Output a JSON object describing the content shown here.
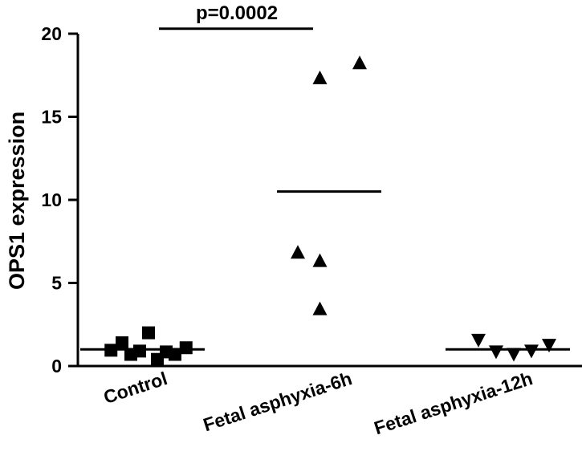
{
  "chart_data": {
    "type": "scatter",
    "title": "",
    "xlabel": "",
    "ylabel": "OPS1 expression",
    "ylim": [
      0,
      20
    ],
    "yticks": [
      0,
      5,
      10,
      15,
      20
    ],
    "grid": false,
    "legend": "none",
    "categories": [
      "Control",
      "Fetal asphyxia-6h",
      "Fetal asphyxia-12h"
    ],
    "series": [
      {
        "category": "Control",
        "marker": "square",
        "x_jitter": [
          -0.85,
          -0.6,
          -0.4,
          -0.2,
          0.0,
          0.2,
          0.4,
          0.6,
          0.85
        ],
        "values": [
          0.95,
          1.4,
          0.7,
          0.9,
          2.0,
          0.4,
          0.85,
          0.7,
          1.1
        ],
        "mean": 1.0
      },
      {
        "category": "Fetal asphyxia-6h",
        "marker": "triangle-up",
        "x_jitter": [
          -0.8,
          -0.3,
          -0.3,
          -0.3,
          0.6
        ],
        "values": [
          6.8,
          3.4,
          6.3,
          17.3,
          18.2
        ],
        "x_offsets_px": [],
        "mean": 10.5
      },
      {
        "category": "Fetal asphyxia-12h",
        "marker": "triangle-down",
        "x_jitter": [
          -0.8,
          -0.4,
          0.0,
          0.4,
          0.8
        ],
        "values": [
          1.6,
          0.9,
          0.75,
          0.95,
          1.3
        ],
        "mean": 1.0
      }
    ],
    "annotation": {
      "text": "p=0.0002",
      "from_category": "Control",
      "to_category": "Fetal asphyxia-6h",
      "y": 20.3
    },
    "colors": {
      "marker": "#000000",
      "axis": "#000000"
    }
  }
}
